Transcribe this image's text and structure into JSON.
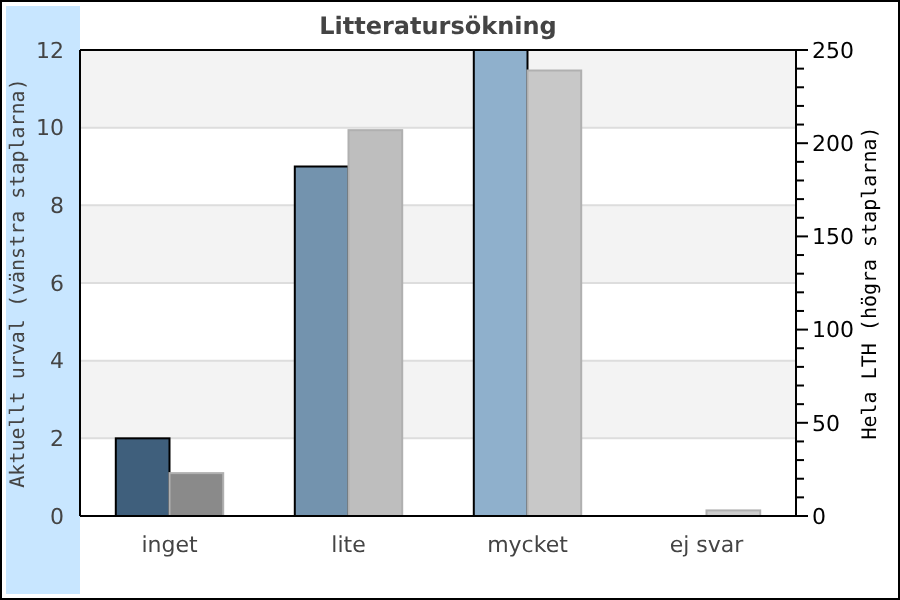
{
  "chart_data": {
    "type": "bar",
    "title": "Litteratursökning",
    "ylabel": "Aktuellt urval (vänstra staplarna)",
    "y2label": "Hela LTH (högra staplarna)",
    "categories": [
      "inget",
      "lite",
      "mycket",
      "ej svar"
    ],
    "series": [
      {
        "colors": [
          "#3f5f7c",
          "#7393ae",
          "#8fb0cc",
          "#8fb0cc"
        ],
        "values": [
          2,
          9,
          12,
          0
        ]
      },
      {
        "axis": "y2",
        "colors": [
          "#8a8a8a",
          "#bebebe",
          "#c8c8c8",
          "#cccccc"
        ],
        "values": [
          23,
          207,
          239,
          3
        ]
      }
    ],
    "ylim": [
      0,
      12
    ],
    "yticks": [
      0,
      2,
      4,
      6,
      8,
      10,
      12
    ],
    "y2lim": [
      0,
      250
    ],
    "y2ticks": [
      0,
      {
        "value": 10,
        "label": null
      },
      {
        "value": 20,
        "label": null
      },
      {
        "value": 30,
        "label": null
      },
      {
        "value": 40,
        "label": null
      },
      50,
      {
        "value": 60,
        "label": null
      },
      {
        "value": 70,
        "label": null
      },
      {
        "value": 80,
        "label": null
      },
      {
        "value": 90,
        "label": null
      },
      100,
      {
        "value": 110,
        "label": null
      },
      {
        "value": 120,
        "label": null
      },
      {
        "value": 130,
        "label": null
      },
      {
        "value": 140,
        "label": null
      },
      150,
      {
        "value": 160,
        "label": null
      },
      {
        "value": 170,
        "label": null
      },
      {
        "value": 180,
        "label": null
      },
      {
        "value": 190,
        "label": null
      },
      200,
      {
        "value": 210,
        "label": null
      },
      {
        "value": 220,
        "label": null
      },
      {
        "value": 230,
        "label": null
      },
      {
        "value": 240,
        "label": null
      },
      250
    ],
    "grid": "y"
  }
}
